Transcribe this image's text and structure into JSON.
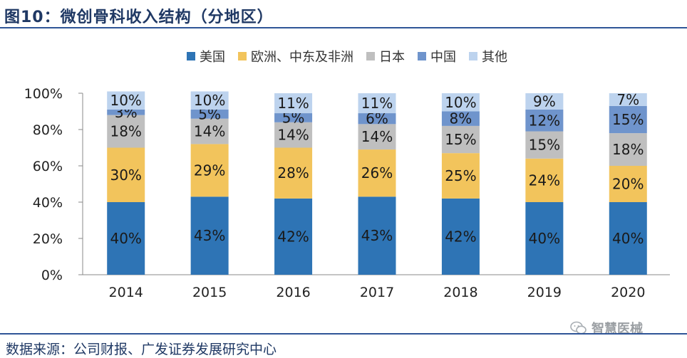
{
  "header": {
    "title": "图10：微创骨科收入结构（分地区）"
  },
  "footer": {
    "source": "数据来源：公司财报、广发证券发展研究中心"
  },
  "watermark": {
    "text": "智慧医械",
    "icon": "wechat-icon"
  },
  "chart_data": {
    "type": "bar",
    "stacked": true,
    "percent": true,
    "categories": [
      "2014",
      "2015",
      "2016",
      "2017",
      "2018",
      "2019",
      "2020"
    ],
    "series": [
      {
        "name": "美国",
        "color": "#2e74b5",
        "values": [
          40,
          43,
          42,
          43,
          42,
          40,
          40
        ]
      },
      {
        "name": "欧洲、中东及非洲",
        "color": "#f2c45c",
        "values": [
          30,
          29,
          28,
          26,
          25,
          24,
          20
        ]
      },
      {
        "name": "日本",
        "color": "#bfbfbf",
        "values": [
          18,
          14,
          14,
          14,
          15,
          15,
          18
        ]
      },
      {
        "name": "中国",
        "color": "#6f94cc",
        "values": [
          3,
          5,
          5,
          6,
          8,
          12,
          15
        ]
      },
      {
        "name": "其他",
        "color": "#bdd3ee",
        "values": [
          10,
          10,
          11,
          11,
          10,
          9,
          7
        ]
      }
    ],
    "yticks": [
      "0%",
      "20%",
      "40%",
      "60%",
      "80%",
      "100%"
    ],
    "ylim": [
      0,
      100
    ],
    "legend_position": "top"
  }
}
